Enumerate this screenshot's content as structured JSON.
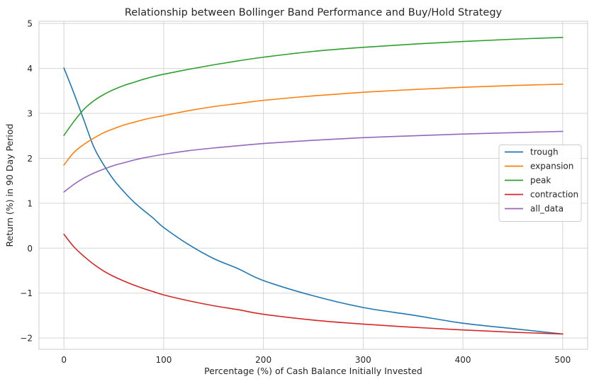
{
  "chart_data": {
    "type": "line",
    "title": "Relationship between Bollinger Band Performance and Buy/Hold Strategy",
    "xlabel": "Percentage (%) of Cash Balance Initially Invested",
    "ylabel": "Return (%) in 90 Day Period",
    "xlim": [
      -25,
      525
    ],
    "ylim": [
      -2.25,
      5.05
    ],
    "xticks": [
      0,
      100,
      200,
      300,
      400,
      500
    ],
    "xtick_labels": [
      "0",
      "100",
      "200",
      "300",
      "400",
      "500"
    ],
    "yticks": [
      -2,
      -1,
      0,
      1,
      2,
      3,
      4,
      5
    ],
    "ytick_labels": [
      "−2",
      "−1",
      "0",
      "1",
      "2",
      "3",
      "4",
      "5"
    ],
    "grid": true,
    "legend_position": "center-right",
    "x": [
      0,
      10,
      20,
      30,
      40,
      50,
      60,
      70,
      80,
      90,
      100,
      125,
      150,
      175,
      200,
      250,
      300,
      350,
      400,
      450,
      500
    ],
    "series": [
      {
        "name": "trough",
        "color": "#1f77b4",
        "values": [
          4.01,
          3.45,
          2.85,
          2.25,
          1.85,
          1.52,
          1.26,
          1.03,
          0.84,
          0.66,
          0.46,
          0.08,
          -0.23,
          -0.46,
          -0.72,
          -1.06,
          -1.32,
          -1.49,
          -1.67,
          -1.79,
          -1.91
        ]
      },
      {
        "name": "expansion",
        "color": "#ff7f0e",
        "values": [
          1.85,
          2.13,
          2.31,
          2.45,
          2.57,
          2.66,
          2.74,
          2.8,
          2.86,
          2.91,
          2.95,
          3.06,
          3.15,
          3.22,
          3.29,
          3.39,
          3.47,
          3.53,
          3.58,
          3.62,
          3.65
        ]
      },
      {
        "name": "peak",
        "color": "#2ca02c",
        "values": [
          2.51,
          2.82,
          3.09,
          3.28,
          3.42,
          3.53,
          3.62,
          3.69,
          3.76,
          3.82,
          3.87,
          3.98,
          4.08,
          4.17,
          4.25,
          4.38,
          4.47,
          4.54,
          4.6,
          4.65,
          4.69
        ]
      },
      {
        "name": "contraction",
        "color": "#d62728",
        "values": [
          0.31,
          0.03,
          -0.18,
          -0.36,
          -0.51,
          -0.63,
          -0.73,
          -0.82,
          -0.9,
          -0.97,
          -1.04,
          -1.17,
          -1.28,
          -1.37,
          -1.47,
          -1.6,
          -1.69,
          -1.76,
          -1.82,
          -1.87,
          -1.91
        ]
      },
      {
        "name": "all_data",
        "color": "#9467bd",
        "values": [
          1.25,
          1.42,
          1.56,
          1.67,
          1.76,
          1.84,
          1.9,
          1.96,
          2.01,
          2.05,
          2.09,
          2.17,
          2.23,
          2.28,
          2.33,
          2.4,
          2.46,
          2.5,
          2.54,
          2.57,
          2.6
        ]
      }
    ]
  }
}
